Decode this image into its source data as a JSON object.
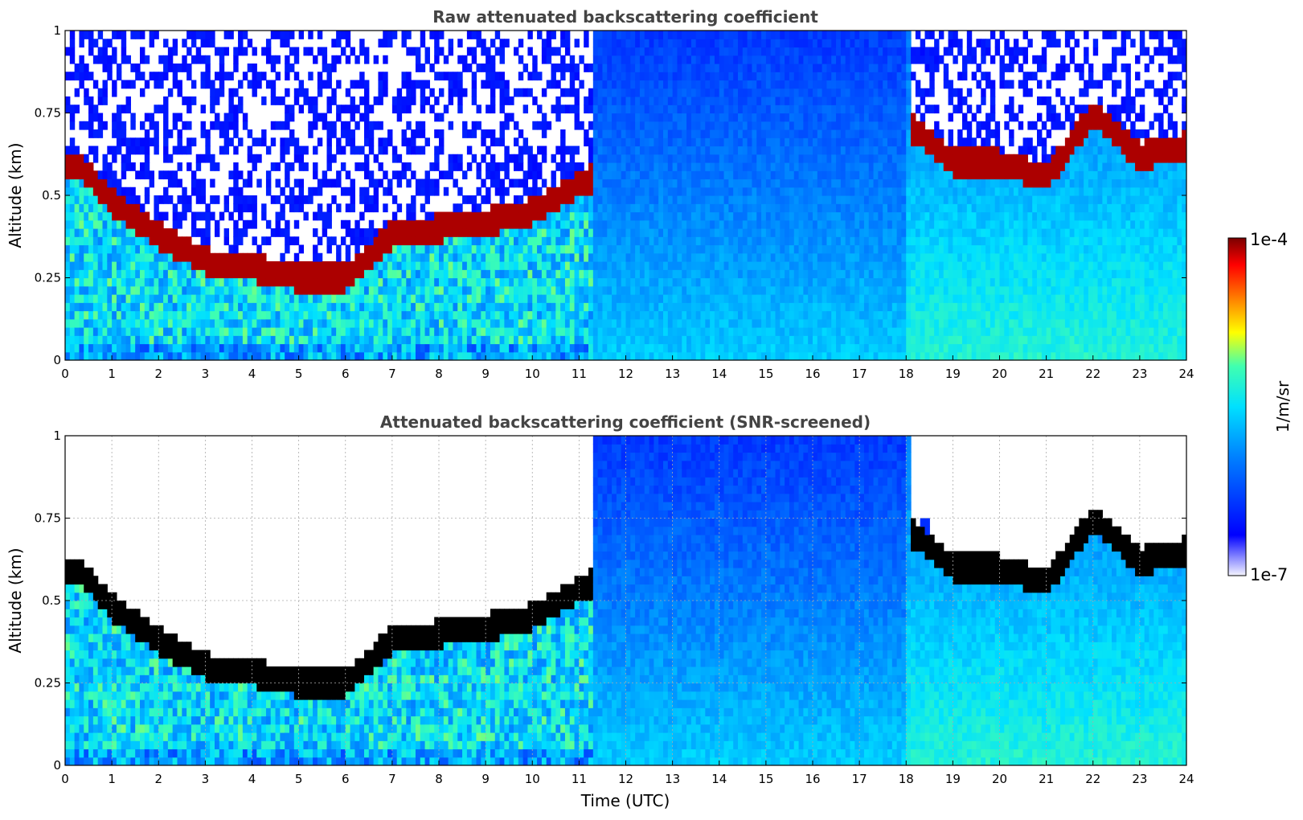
{
  "chart_data": [
    {
      "type": "heatmap",
      "title": "Raw attenuated backscattering coefficient",
      "xlabel": "",
      "ylabel": "Altitude (km)",
      "xlim": [
        0,
        24
      ],
      "ylim": [
        0,
        1
      ],
      "x_ticks": [
        "0",
        "1",
        "2",
        "3",
        "4",
        "5",
        "6",
        "7",
        "8",
        "9",
        "10",
        "11",
        "12",
        "13",
        "14",
        "15",
        "16",
        "17",
        "18",
        "19",
        "20",
        "21",
        "22",
        "23",
        "24"
      ],
      "y_ticks": [
        "0",
        "0.25",
        "0.5",
        "0.75",
        "1"
      ],
      "grid": false,
      "colormap": "jet",
      "color_scale": "log",
      "cloud_base_km": {
        "x": [
          0.4,
          1,
          2,
          3,
          4,
          5,
          6,
          7,
          8,
          9,
          10,
          11.2,
          18.2,
          19,
          20,
          21,
          22,
          23,
          24
        ],
        "y": [
          0.58,
          0.48,
          0.38,
          0.3,
          0.28,
          0.25,
          0.25,
          0.38,
          0.4,
          0.42,
          0.45,
          0.55,
          0.7,
          0.6,
          0.6,
          0.55,
          0.75,
          0.62,
          0.65
        ]
      },
      "dense_near_field_until_hour": 11.3,
      "noise_region_after_hour": 11.3
    },
    {
      "type": "heatmap",
      "title": "Attenuated backscattering coefficient (SNR-screened)",
      "xlabel": "Time (UTC)",
      "ylabel": "Altitude (km)",
      "xlim": [
        0,
        24
      ],
      "ylim": [
        0,
        1
      ],
      "x_ticks": [
        "0",
        "1",
        "2",
        "3",
        "4",
        "5",
        "6",
        "7",
        "8",
        "9",
        "10",
        "11",
        "12",
        "13",
        "14",
        "15",
        "16",
        "17",
        "18",
        "19",
        "20",
        "21",
        "22",
        "23",
        "24"
      ],
      "y_ticks": [
        "0",
        "0.25",
        "0.5",
        "0.75",
        "1"
      ],
      "grid": true,
      "colormap": "jet",
      "color_scale": "log",
      "saturated_color": "#000000",
      "cloud_base_km": {
        "x": [
          0.4,
          1,
          2,
          3,
          4,
          5,
          6,
          7,
          8,
          9,
          10,
          11.2,
          18.2,
          19,
          20,
          21,
          22,
          23,
          24
        ],
        "y": [
          0.58,
          0.48,
          0.38,
          0.3,
          0.28,
          0.25,
          0.25,
          0.38,
          0.4,
          0.42,
          0.45,
          0.55,
          0.7,
          0.6,
          0.6,
          0.55,
          0.75,
          0.62,
          0.65
        ]
      }
    }
  ],
  "colorbar": {
    "max_label": "1e-4",
    "min_label": "1e-7",
    "unit_label": "1/m/sr",
    "colors": [
      "#f0f0ff",
      "#0000ff",
      "#00bfff",
      "#00ffb0",
      "#ffff00",
      "#ff8000",
      "#ff0000",
      "#800000"
    ]
  }
}
